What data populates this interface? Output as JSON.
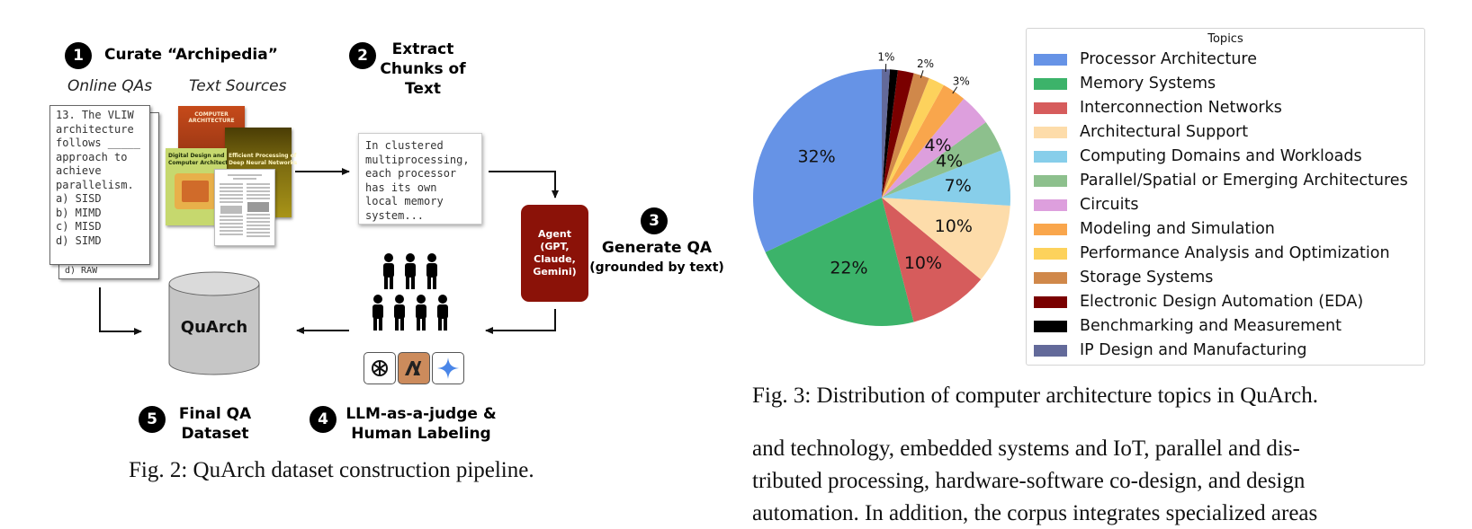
{
  "pipeline": {
    "steps": [
      {
        "num": "1",
        "title": "Curate “Archipedia”"
      },
      {
        "num": "2",
        "title": "Extract\nChunks of\nText"
      },
      {
        "num": "3",
        "title": "Generate QA"
      },
      {
        "num": "4",
        "title": "LLM-as-a-judge &\nHuman Labeling"
      },
      {
        "num": "5",
        "title": "Final QA\nDataset"
      }
    ],
    "step3_subtitle": "(grounded by text)",
    "online_qas_label": "Online QAs",
    "text_sources_label": "Text Sources",
    "qa_doc_text": "13. The VLIW\narchitecture\nfollows _____\napproach to\nachieve\nparallelism.\na) SISD\nb) MIMD\nc) MISD\nd) SIMD",
    "qa_doc_back_text": "d) RAW",
    "chunk_text": "In clustered\nmultiprocessing,\neach processor\nhas its own\nlocal memory\nsystem...",
    "book1_title": "COMPUTER ARCHITECTURE",
    "book2_title": "Efficient Processing of\nDeep Neural Networks",
    "book3_title": "Digital Design and\nComputer Architecture",
    "agent_text": "Agent\n(GPT,\nClaude,\nGemini)",
    "database_label": "QuArch",
    "caption": "Fig. 2: QuArch dataset construction pipeline."
  },
  "pie": {
    "caption": "Fig. 3: Distribution of computer architecture topics in QuArch."
  },
  "chart_data": {
    "type": "pie",
    "legend_title": "Topics",
    "legend_position": "right",
    "slices": [
      {
        "label": "Processor Architecture",
        "value": 32,
        "pct_label": "32%",
        "color": "#6693e6"
      },
      {
        "label": "Memory Systems",
        "value": 22,
        "pct_label": "22%",
        "color": "#3cb36a"
      },
      {
        "label": "Interconnection Networks",
        "value": 10,
        "pct_label": "10%",
        "color": "#d65c5c"
      },
      {
        "label": "Architectural Support",
        "value": 10,
        "pct_label": "10%",
        "color": "#fddcaa"
      },
      {
        "label": "Computing Domains and Workloads",
        "value": 7,
        "pct_label": "7%",
        "color": "#87ceea"
      },
      {
        "label": "Parallel/Spatial or Emerging Architectures",
        "value": 4,
        "pct_label": "4%",
        "color": "#8dc08d"
      },
      {
        "label": "Circuits",
        "value": 4,
        "pct_label": "4%",
        "color": "#dd9fdd"
      },
      {
        "label": "Modeling and Simulation",
        "value": 3,
        "pct_label": "3%",
        "color": "#f9a64c"
      },
      {
        "label": "Performance Analysis and Optimization",
        "value": 2,
        "pct_label": "",
        "color": "#fdd25c"
      },
      {
        "label": "Storage Systems",
        "value": 2,
        "pct_label": "2%",
        "color": "#d0884a"
      },
      {
        "label": "Electronic Design Automation (EDA)",
        "value": 2,
        "pct_label": "",
        "color": "#7a0000"
      },
      {
        "label": "Benchmarking and Measurement",
        "value": 1,
        "pct_label": "",
        "color": "#000000"
      },
      {
        "label": "IP Design and Manufacturing",
        "value": 1,
        "pct_label": "1%",
        "color": "#636a9a"
      }
    ]
  },
  "body_text": {
    "lines": [
      "and technology, embedded systems and IoT, parallel and dis-",
      "tributed processing, hardware-software co-design, and design",
      "automation. In addition, the corpus integrates specialized areas"
    ]
  }
}
